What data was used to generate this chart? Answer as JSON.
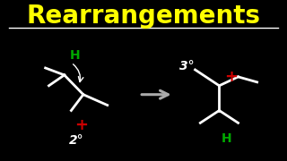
{
  "bg_color": "#000000",
  "title": "Rearrangements",
  "title_color": "#FFFF00",
  "title_fontsize": 20,
  "line_color": "#FFFFFF",
  "line_width": 2.0,
  "arrow_color": "#AAAAAA",
  "plus_color": "#CC0000",
  "h_color": "#00AA00",
  "label_2deg": "2°",
  "label_3deg": "3°"
}
